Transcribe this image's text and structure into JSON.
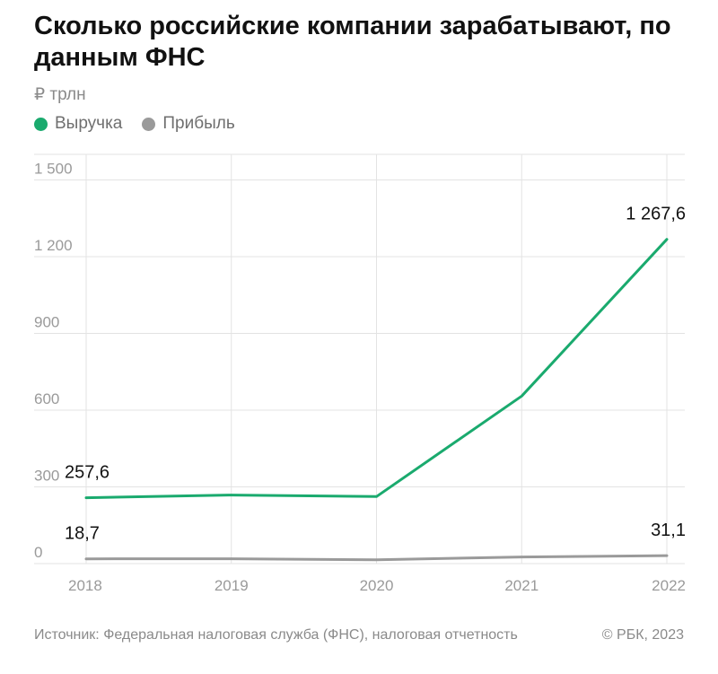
{
  "title": "Сколько российские компании зарабатывают, по данным ФНС",
  "unit": "₽ трлн",
  "source": "Источник: Федеральная налоговая служба (ФНС), налоговая отчетность",
  "copyright": "© РБК, 2023",
  "colors": {
    "revenue": "#1aaa6e",
    "profit": "#9a9a9a",
    "grid": "#e3e3e3",
    "axis_text": "#9a9a9a"
  },
  "chart_data": {
    "type": "line",
    "title": "Сколько российские компании зарабатывают, по данным ФНС",
    "ylabel": "₽ трлн",
    "categories": [
      "2018",
      "2019",
      "2020",
      "2021",
      "2022"
    ],
    "ylim": [
      0,
      1500
    ],
    "yticks": [
      {
        "value": 0,
        "label": "0"
      },
      {
        "value": 300,
        "label": "300"
      },
      {
        "value": 600,
        "label": "600"
      },
      {
        "value": 900,
        "label": "900"
      },
      {
        "value": 1200,
        "label": "1 200"
      },
      {
        "value": 1500,
        "label": "1 500"
      }
    ],
    "grid": true,
    "legend": "top-left",
    "series": [
      {
        "name": "Выручка",
        "color": "#1aaa6e",
        "values": [
          257.6,
          268,
          262,
          655,
          1267.6
        ],
        "labels": [
          {
            "index": 0,
            "text": "257,6"
          },
          {
            "index": 4,
            "text": "1 267,6"
          }
        ]
      },
      {
        "name": "Прибыль",
        "color": "#9a9a9a",
        "values": [
          18.7,
          19,
          15,
          26,
          31.1
        ],
        "labels": [
          {
            "index": 0,
            "text": "18,7"
          },
          {
            "index": 4,
            "text": "31,1"
          }
        ]
      }
    ]
  }
}
